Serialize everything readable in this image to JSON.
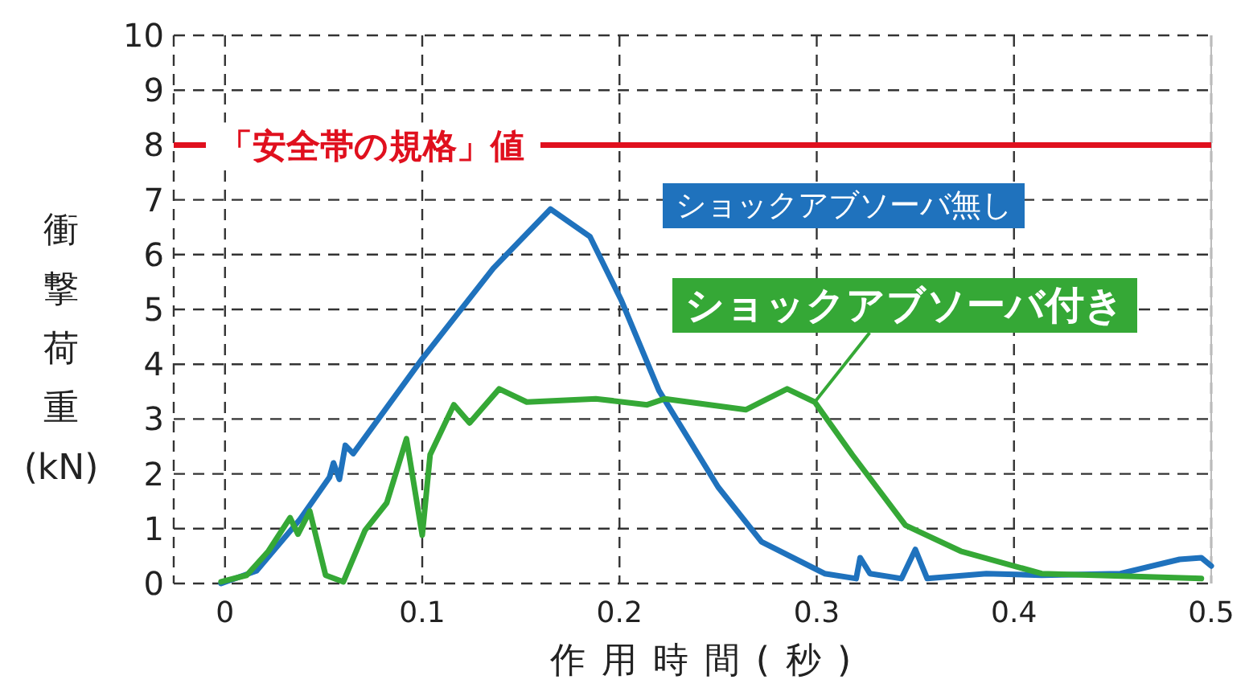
{
  "chart_data": {
    "type": "line",
    "xlabel": "作用時間(秒)",
    "ylabel": "衝撃荷重(kN)",
    "xlim": [
      -0.026,
      0.5
    ],
    "ylim": [
      0,
      10
    ],
    "xticks": [
      0,
      0.1,
      0.2,
      0.3,
      0.4,
      0.5
    ],
    "yticks": [
      0,
      1,
      2,
      3,
      4,
      5,
      6,
      7,
      8,
      9,
      10
    ],
    "grid": true,
    "legend": false,
    "marker": "none",
    "line_style": "solid",
    "ref_lines": [
      {
        "axis": "y",
        "value": 8,
        "label": "「安全帯の規格」値",
        "color": "#e0101e"
      }
    ],
    "series": [
      {
        "name": "ショックアブソーバ無し",
        "color": "#1f72bd",
        "x": [
          -0.002,
          0.016,
          0.038,
          0.053,
          0.055,
          0.058,
          0.061,
          0.065,
          0.1,
          0.136,
          0.165,
          0.185,
          0.201,
          0.22,
          0.25,
          0.272,
          0.304,
          0.32,
          0.322,
          0.327,
          0.343,
          0.35,
          0.356,
          0.386,
          0.414,
          0.454,
          0.484,
          0.495,
          0.5
        ],
        "values": [
          0,
          0.23,
          1.17,
          1.94,
          2.2,
          1.9,
          2.52,
          2.37,
          4.1,
          5.75,
          6.83,
          6.33,
          5.16,
          3.52,
          1.76,
          0.76,
          0.18,
          0.09,
          0.47,
          0.18,
          0.09,
          0.62,
          0.09,
          0.18,
          0.15,
          0.18,
          0.44,
          0.47,
          0.32
        ]
      },
      {
        "name": "ショックアブソーバ付き",
        "color": "#35a836",
        "x": [
          -0.002,
          0.011,
          0.022,
          0.033,
          0.037,
          0.043,
          0.051,
          0.06,
          0.071,
          0.082,
          0.092,
          0.1,
          0.104,
          0.116,
          0.124,
          0.139,
          0.153,
          0.188,
          0.214,
          0.223,
          0.264,
          0.285,
          0.299,
          0.318,
          0.345,
          0.373,
          0.414,
          0.495
        ],
        "values": [
          0.03,
          0.15,
          0.59,
          1.2,
          0.9,
          1.32,
          0.15,
          0.03,
          0.97,
          1.47,
          2.64,
          0.88,
          2.35,
          3.26,
          2.93,
          3.55,
          3.31,
          3.37,
          3.26,
          3.37,
          3.17,
          3.55,
          3.31,
          2.35,
          1.06,
          0.59,
          0.18,
          0.09
        ]
      }
    ]
  }
}
